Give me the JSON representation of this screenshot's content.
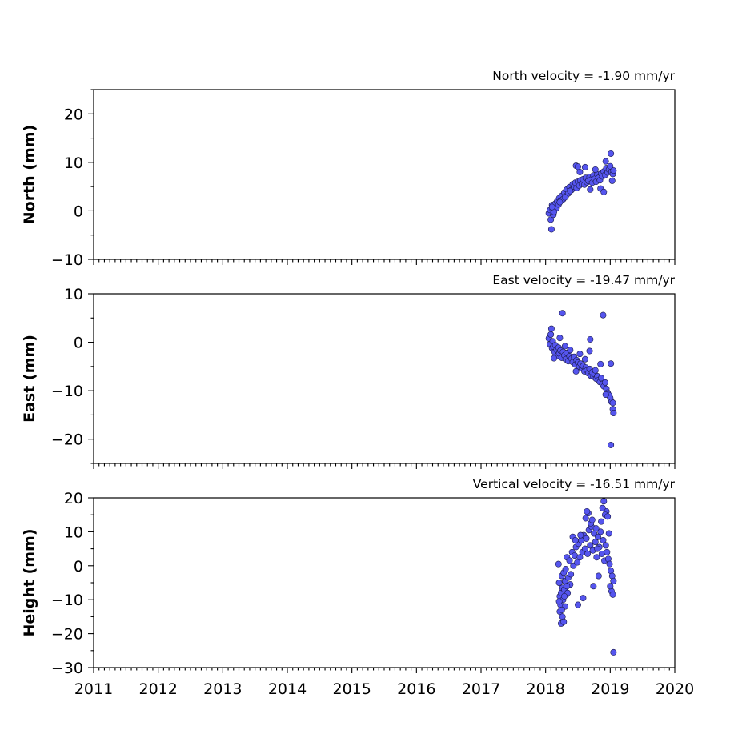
{
  "chart_data": [
    {
      "type": "scatter",
      "title": "North velocity = -1.90 mm/yr",
      "xlabel": "",
      "ylabel": "North (mm)",
      "xlim": [
        2011,
        2020
      ],
      "ylim": [
        -10,
        25
      ],
      "x_ticks": [
        2011,
        2012,
        2013,
        2014,
        2015,
        2016,
        2017,
        2018,
        2019,
        2020
      ],
      "y_ticks": [
        -10,
        0,
        10,
        20
      ],
      "y_tick_labels": [
        "−10",
        "0",
        "10",
        "20"
      ],
      "show_x_tick_labels": false,
      "marker_color": "#5555ee",
      "x": [
        2018.05,
        2018.07,
        2018.08,
        2018.1,
        2018.11,
        2018.12,
        2018.14,
        2018.15,
        2018.17,
        2018.18,
        2018.2,
        2018.21,
        2018.23,
        2018.25,
        2018.27,
        2018.29,
        2018.31,
        2018.33,
        2018.35,
        2018.37,
        2018.4,
        2018.42,
        2018.44,
        2018.46,
        2018.48,
        2018.5,
        2018.52,
        2018.54,
        2018.56,
        2018.58,
        2018.6,
        2018.62,
        2018.64,
        2018.66,
        2018.68,
        2018.7,
        2018.72,
        2018.74,
        2018.76,
        2018.78,
        2018.8,
        2018.82,
        2018.84,
        2018.86,
        2018.88,
        2018.9,
        2018.92,
        2018.94,
        2018.96,
        2018.98,
        2019.0,
        2019.02,
        2019.04,
        2019.05,
        2018.09,
        2018.13,
        2018.22,
        2018.3,
        2018.38,
        2018.47,
        2018.53,
        2018.61,
        2018.69,
        2018.77,
        2018.85,
        2018.93,
        2019.01,
        2018.1,
        2018.5,
        2018.9,
        2019.03
      ],
      "y": [
        -0.5,
        0.2,
        -1.8,
        1.2,
        0.3,
        -0.8,
        0.9,
        1.5,
        0.6,
        2.0,
        1.3,
        2.6,
        2.2,
        3.1,
        2.4,
        3.8,
        3.0,
        4.4,
        3.6,
        4.9,
        4.3,
        5.5,
        5.0,
        5.8,
        4.7,
        6.0,
        5.2,
        6.3,
        5.6,
        6.5,
        5.4,
        6.8,
        5.9,
        6.2,
        7.0,
        6.4,
        5.8,
        7.3,
        6.6,
        6.0,
        7.5,
        6.8,
        6.3,
        7.7,
        7.1,
        8.1,
        7.4,
        8.8,
        7.9,
        8.5,
        9.2,
        8.0,
        7.6,
        8.3,
        -3.8,
        -0.2,
        1.8,
        2.8,
        4.1,
        9.3,
        8.0,
        9.0,
        4.4,
        8.5,
        4.6,
        10.2,
        11.8,
        0.8,
        9.1,
        3.9,
        6.2
      ]
    },
    {
      "type": "scatter",
      "title": "East velocity = -19.47 mm/yr",
      "xlabel": "",
      "ylabel": "East (mm)",
      "xlim": [
        2011,
        2020
      ],
      "ylim": [
        -25,
        10
      ],
      "x_ticks": [
        2011,
        2012,
        2013,
        2014,
        2015,
        2016,
        2017,
        2018,
        2019,
        2020
      ],
      "y_ticks": [
        -20,
        -10,
        0,
        10
      ],
      "y_tick_labels": [
        "−20",
        "−10",
        "0",
        "10"
      ],
      "show_x_tick_labels": false,
      "marker_color": "#5555ee",
      "x": [
        2018.05,
        2018.07,
        2018.08,
        2018.1,
        2018.11,
        2018.12,
        2018.14,
        2018.15,
        2018.17,
        2018.18,
        2018.2,
        2018.21,
        2018.23,
        2018.25,
        2018.27,
        2018.29,
        2018.31,
        2018.33,
        2018.35,
        2018.37,
        2018.4,
        2018.42,
        2018.44,
        2018.46,
        2018.48,
        2018.5,
        2018.52,
        2018.54,
        2018.56,
        2018.58,
        2018.6,
        2018.62,
        2018.64,
        2018.66,
        2018.68,
        2018.7,
        2018.72,
        2018.74,
        2018.76,
        2018.78,
        2018.8,
        2018.82,
        2018.84,
        2018.86,
        2018.88,
        2018.9,
        2018.92,
        2018.94,
        2018.96,
        2018.98,
        2019.0,
        2019.02,
        2019.04,
        2019.05,
        2018.09,
        2018.13,
        2018.22,
        2018.3,
        2018.38,
        2018.47,
        2018.53,
        2018.61,
        2018.69,
        2018.77,
        2018.85,
        2018.93,
        2019.01,
        2018.26,
        2018.68,
        2018.89,
        2019.01,
        2019.04
      ],
      "y": [
        0.8,
        -0.4,
        1.6,
        -1.2,
        0.2,
        -0.9,
        -2.0,
        -0.6,
        -1.5,
        -2.8,
        -1.1,
        -2.3,
        -1.7,
        -3.2,
        -2.0,
        -2.7,
        -3.5,
        -2.2,
        -3.9,
        -2.9,
        -3.4,
        -4.1,
        -3.0,
        -4.6,
        -3.7,
        -4.2,
        -5.0,
        -4.4,
        -5.4,
        -4.9,
        -6.0,
        -5.2,
        -5.8,
        -6.4,
        -5.5,
        -6.9,
        -6.2,
        -7.1,
        -6.6,
        -7.5,
        -7.0,
        -7.8,
        -8.2,
        -7.4,
        -8.6,
        -9.1,
        -8.3,
        -9.6,
        -10.4,
        -10.9,
        -11.5,
        -12.3,
        -13.8,
        -14.6,
        2.8,
        -3.3,
        0.9,
        -0.8,
        -1.6,
        -6.0,
        -2.4,
        -3.5,
        0.6,
        -5.8,
        -4.5,
        -10.8,
        -21.2,
        6.0,
        -1.8,
        5.6,
        -4.4,
        -12.5
      ]
    },
    {
      "type": "scatter",
      "title": "Vertical velocity = -16.51 mm/yr",
      "xlabel": "",
      "ylabel": "Height (mm)",
      "xlim": [
        2011,
        2020
      ],
      "ylim": [
        -30,
        20
      ],
      "x_ticks": [
        2011,
        2012,
        2013,
        2014,
        2015,
        2016,
        2017,
        2018,
        2019,
        2020
      ],
      "x_tick_labels": [
        "2011",
        "2012",
        "2013",
        "2014",
        "2015",
        "2016",
        "2017",
        "2018",
        "2019",
        "2020"
      ],
      "y_ticks": [
        -30,
        -20,
        -10,
        0,
        10,
        20
      ],
      "y_tick_labels": [
        "−30",
        "−20",
        "−10",
        "0",
        "10",
        "20"
      ],
      "show_x_tick_labels": true,
      "marker_color": "#5555ee",
      "x": [
        2018.2,
        2018.21,
        2018.22,
        2018.23,
        2018.24,
        2018.25,
        2018.26,
        2018.27,
        2018.28,
        2018.29,
        2018.3,
        2018.31,
        2018.32,
        2018.33,
        2018.35,
        2018.37,
        2018.39,
        2018.41,
        2018.43,
        2018.45,
        2018.47,
        2018.49,
        2018.51,
        2018.53,
        2018.55,
        2018.57,
        2018.59,
        2018.61,
        2018.63,
        2018.65,
        2018.67,
        2018.69,
        2018.71,
        2018.73,
        2018.75,
        2018.77,
        2018.79,
        2018.81,
        2018.83,
        2018.85,
        2018.87,
        2018.89,
        2018.91,
        2018.93,
        2018.95,
        2018.97,
        2018.99,
        2019.01,
        2019.03,
        2019.05,
        2018.22,
        2018.24,
        2018.26,
        2018.28,
        2018.3,
        2018.34,
        2018.38,
        2018.42,
        2018.46,
        2018.5,
        2018.54,
        2018.58,
        2018.62,
        2018.66,
        2018.7,
        2018.74,
        2018.78,
        2018.82,
        2018.86,
        2018.9,
        2018.94,
        2018.98,
        2019.02,
        2018.21,
        2018.25,
        2018.29,
        2018.33,
        2018.64,
        2018.72,
        2018.8,
        2018.88,
        2018.92,
        2018.96,
        2019.0,
        2019.04,
        2019.05
      ],
      "y": [
        0.5,
        -5.0,
        -9.0,
        -11.5,
        -8.0,
        -3.0,
        -6.5,
        -10.0,
        -2.0,
        -7.0,
        -4.5,
        -1.0,
        -8.5,
        2.5,
        -3.5,
        1.5,
        -2.5,
        4.0,
        0.0,
        3.0,
        5.5,
        1.0,
        6.5,
        2.5,
        7.5,
        4.0,
        9.0,
        5.0,
        8.0,
        3.5,
        10.5,
        6.0,
        11.5,
        4.5,
        9.5,
        7.0,
        2.5,
        8.5,
        5.5,
        10.0,
        3.5,
        7.5,
        1.5,
        6.0,
        4.0,
        2.0,
        0.5,
        -1.5,
        -3.0,
        -4.5,
        -13.5,
        -17.0,
        -15.0,
        -16.5,
        -12.0,
        -8.0,
        -5.5,
        8.5,
        7.5,
        -11.5,
        9.0,
        -9.5,
        14.0,
        15.5,
        12.5,
        -6.0,
        11.0,
        -3.0,
        13.0,
        19.0,
        16.0,
        9.5,
        -7.5,
        -10.5,
        -13.0,
        -9.0,
        -6.0,
        16.0,
        13.5,
        5.0,
        17.0,
        15.0,
        14.5,
        -6.0,
        -8.5,
        -25.5
      ]
    }
  ]
}
